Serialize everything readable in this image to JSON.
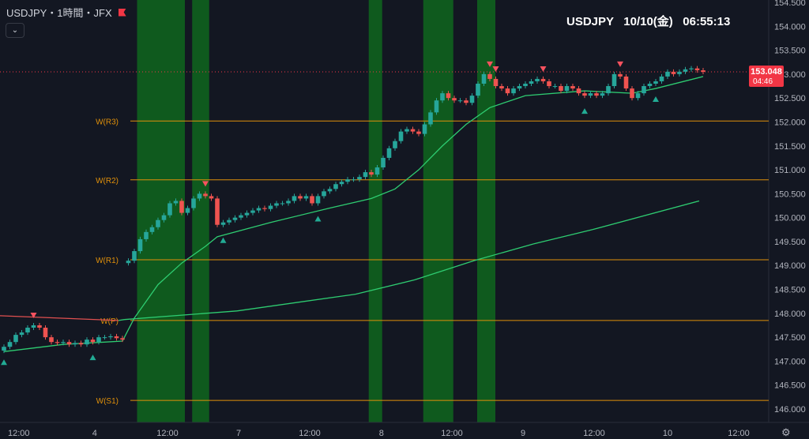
{
  "header": {
    "symbol_line": "USDJPY・1時間・JFX",
    "clock": "USDJPY   10/10(金)   06:55:13",
    "collapse_icon": "chevron-down-icon",
    "flag_icon": "flag-icon",
    "settings_icon": "gear-icon"
  },
  "current_price": {
    "value": "153.048",
    "countdown": "04:46",
    "color": "#f23645"
  },
  "colors": {
    "up": "#26a69a",
    "down": "#ef5350",
    "background": "#131722",
    "session": "#0f5a1e",
    "pivot": "#e0900a",
    "fast_ma": "#2ecc71",
    "slow_ma_up": "#2ecc71",
    "slow_ma_down": "#e05050"
  },
  "chart_data": {
    "type": "candlestick",
    "ylim": [
      146.0,
      154.5
    ],
    "y_ticks": [
      "154.500",
      "154.000",
      "153.500",
      "153.000",
      "152.500",
      "152.000",
      "151.500",
      "151.000",
      "150.500",
      "150.000",
      "149.500",
      "149.000",
      "148.500",
      "148.000",
      "147.500",
      "147.000",
      "146.500",
      "146.000"
    ],
    "x_ticks": [
      {
        "label": "12:00",
        "candle": 2.5
      },
      {
        "label": "4",
        "candle": 15.3
      },
      {
        "label": "12:00",
        "candle": 27.6
      },
      {
        "label": "7",
        "candle": 39.6
      },
      {
        "label": "12:00",
        "candle": 51.6
      },
      {
        "label": "8",
        "candle": 63.7
      },
      {
        "label": "12:00",
        "candle": 75.6
      },
      {
        "label": "9",
        "candle": 87.6
      },
      {
        "label": "12:00",
        "candle": 99.6
      },
      {
        "label": "10",
        "candle": 112
      },
      {
        "label": "12:00",
        "candle": 124
      }
    ],
    "gap_open": {
      "candle": 21,
      "open": 149.05
    },
    "closes": [
      147.3,
      147.4,
      147.55,
      147.6,
      147.7,
      147.75,
      147.7,
      147.5,
      147.4,
      147.38,
      147.4,
      147.35,
      147.38,
      147.35,
      147.45,
      147.4,
      147.5,
      147.5,
      147.52,
      147.48,
      147.45,
      149.1,
      149.3,
      149.55,
      149.7,
      149.8,
      149.95,
      150.05,
      150.3,
      150.35,
      150.1,
      150.2,
      150.4,
      150.5,
      150.45,
      150.4,
      149.85,
      149.9,
      149.95,
      150.0,
      150.05,
      150.1,
      150.15,
      150.2,
      150.18,
      150.25,
      150.3,
      150.3,
      150.35,
      150.45,
      150.4,
      150.45,
      150.3,
      150.45,
      150.55,
      150.6,
      150.7,
      150.75,
      150.8,
      150.8,
      150.85,
      150.95,
      150.9,
      151.05,
      151.25,
      151.45,
      151.6,
      151.8,
      151.85,
      151.8,
      151.75,
      151.95,
      152.2,
      152.45,
      152.6,
      152.5,
      152.45,
      152.45,
      152.4,
      152.55,
      152.8,
      153.0,
      152.9,
      152.75,
      152.7,
      152.6,
      152.7,
      152.75,
      152.8,
      152.85,
      152.9,
      152.85,
      152.75,
      152.75,
      152.65,
      152.75,
      152.7,
      152.6,
      152.55,
      152.6,
      152.55,
      152.6,
      152.75,
      153.0,
      152.95,
      152.7,
      152.5,
      152.6,
      152.75,
      152.8,
      152.85,
      152.95,
      153.05,
      153.0,
      153.05,
      153.1,
      153.12,
      153.08,
      153.048
    ],
    "fast_ma": [
      [
        0,
        147.2
      ],
      [
        10,
        147.35
      ],
      [
        20,
        147.42
      ],
      [
        22,
        147.9
      ],
      [
        26,
        148.6
      ],
      [
        30,
        149.05
      ],
      [
        34,
        149.4
      ],
      [
        36,
        149.6
      ],
      [
        45,
        149.9
      ],
      [
        55,
        150.2
      ],
      [
        62,
        150.4
      ],
      [
        66,
        150.6
      ],
      [
        70,
        151.0
      ],
      [
        74,
        151.5
      ],
      [
        78,
        151.95
      ],
      [
        82,
        152.3
      ],
      [
        88,
        152.55
      ],
      [
        98,
        152.65
      ],
      [
        106,
        152.6
      ],
      [
        110,
        152.7
      ],
      [
        118,
        152.95
      ]
    ],
    "slow_ma": [
      [
        0,
        147.95,
        "down"
      ],
      [
        20,
        147.85,
        "down"
      ],
      [
        21,
        147.87,
        "up"
      ],
      [
        40,
        148.05,
        "up"
      ],
      [
        60,
        148.4,
        "up"
      ],
      [
        70,
        148.7,
        "up"
      ],
      [
        80,
        149.1,
        "up"
      ],
      [
        90,
        149.45,
        "up"
      ],
      [
        100,
        149.75,
        "up"
      ],
      [
        118,
        150.35,
        "up"
      ]
    ],
    "pivots": [
      {
        "label": "W(R3)",
        "value": 152.02
      },
      {
        "label": "W(R2)",
        "value": 150.79
      },
      {
        "label": "W(R1)",
        "value": 149.12
      },
      {
        "label": "W(P)",
        "value": 147.85
      },
      {
        "label": "W(S1)",
        "value": 146.18
      }
    ],
    "sessions": [
      [
        23,
        30
      ],
      [
        32.3,
        34.1
      ],
      [
        62.1,
        63.3
      ],
      [
        71.3,
        75.3
      ],
      [
        80.4,
        82.4
      ]
    ],
    "sell_signals": [
      5,
      34,
      82,
      83,
      91,
      104
    ],
    "buy_signals": [
      0,
      15,
      37,
      53,
      98,
      110
    ]
  }
}
